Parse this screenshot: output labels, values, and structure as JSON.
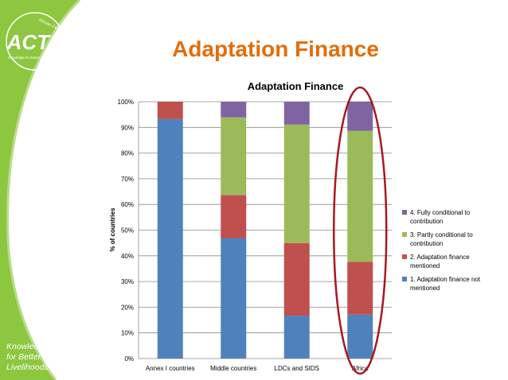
{
  "slide": {
    "title": "Adaptation Finance",
    "logo_text": "ACTS",
    "logo_ring_text": "African Centre for Technology Studies",
    "logo_subtext": "Knowledge for Better Livelihoods",
    "tagline": [
      "Knowledge",
      "for Better",
      "Livelihoods"
    ]
  },
  "colors": {
    "green_panel": "#8dc63f",
    "title_orange": "#e46c0a",
    "highlight_ring": "#a6191e"
  },
  "chart_data": {
    "type": "bar",
    "stacked": true,
    "title": "Adaptation Finance",
    "xlabel": "",
    "ylabel": "% of countries",
    "ylim": [
      0,
      100
    ],
    "yticks": [
      "0%",
      "10%",
      "20%",
      "30%",
      "40%",
      "50%",
      "60%",
      "70%",
      "80%",
      "90%",
      "100%"
    ],
    "grid": true,
    "legend_position": "right",
    "categories": [
      "Annex I countries",
      "Middle countries",
      "LDCs and SIDS",
      "Africa"
    ],
    "highlighted_category": "Africa",
    "series": [
      {
        "name": "1. Adaptation finance not mentioned",
        "color": "#4f81bd",
        "values": [
          93.3,
          46.9,
          16.7,
          17.1
        ]
      },
      {
        "name": "2. Adaptation finance mentioned",
        "color": "#c0504d",
        "values": [
          6.7,
          16.8,
          28.3,
          20.6
        ]
      },
      {
        "name": "3. Partly conditional to contribution",
        "color": "#9bbb59",
        "values": [
          0,
          30.2,
          46.1,
          51.0
        ]
      },
      {
        "name": "4. Fully conditional to contribution",
        "color": "#8064a2",
        "values": [
          0,
          6.1,
          8.9,
          11.3
        ]
      }
    ],
    "legend_lines": [
      [
        "4. Fully conditional to",
        "contribution"
      ],
      [
        "3. Partly conditional to",
        "contribution"
      ],
      [
        "2. Adaptation finance",
        "mentioned"
      ],
      [
        "1. Adaptation finance not",
        "mentioned"
      ]
    ]
  }
}
